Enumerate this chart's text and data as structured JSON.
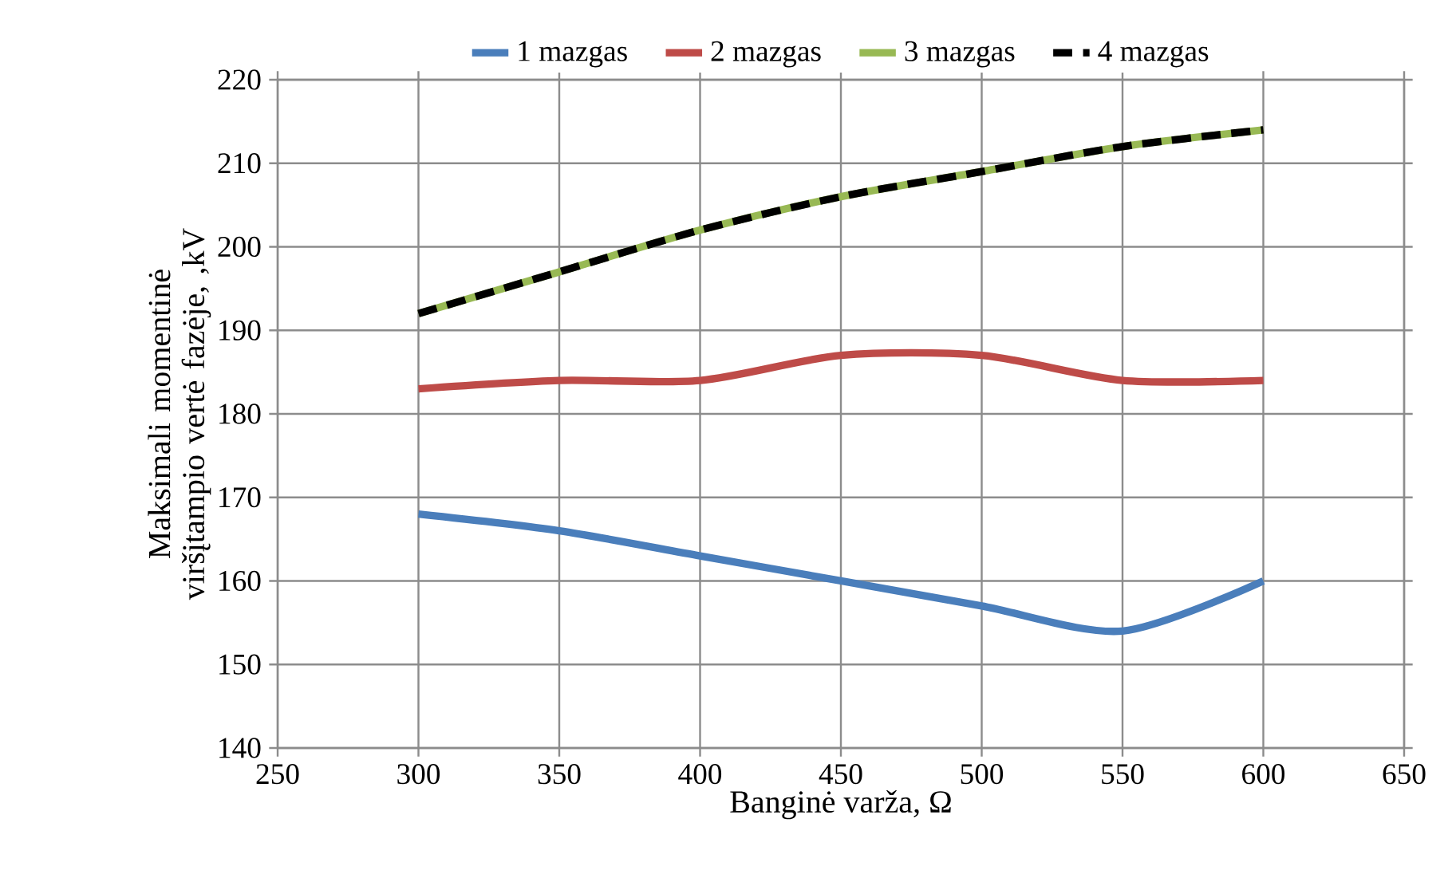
{
  "chart_data": {
    "type": "line",
    "xlabel": "Banginė varža, Ω",
    "ylabel": "Maksimali momentinė viršįtampio vertė fazėje, ,kV",
    "x": [
      300,
      350,
      400,
      450,
      500,
      550,
      600
    ],
    "series": [
      {
        "name": "1 mazgas",
        "color": "#4a7ebb",
        "values": [
          168,
          166,
          163,
          160,
          157,
          154,
          160
        ]
      },
      {
        "name": "2 mazgas",
        "color": "#be4b48",
        "values": [
          183,
          184,
          184,
          187,
          187,
          184,
          184
        ]
      },
      {
        "name": "3 mazgas",
        "color": "#98b954",
        "values": [
          192,
          197,
          202,
          206,
          209,
          212,
          214
        ]
      },
      {
        "name": "4 mazgas",
        "color": "#000000",
        "values": [
          192,
          197,
          202,
          206,
          209,
          212,
          214
        ],
        "line_style": "dashed"
      }
    ],
    "xlim": [
      250,
      650
    ],
    "xticks": [
      250,
      300,
      350,
      400,
      450,
      500,
      550,
      600,
      650
    ],
    "ylim": [
      140,
      220
    ],
    "yticks": [
      140,
      150,
      160,
      170,
      180,
      190,
      200,
      210,
      220
    ],
    "grid": true,
    "legend": "top",
    "marker": "none",
    "line_style": "solid"
  }
}
